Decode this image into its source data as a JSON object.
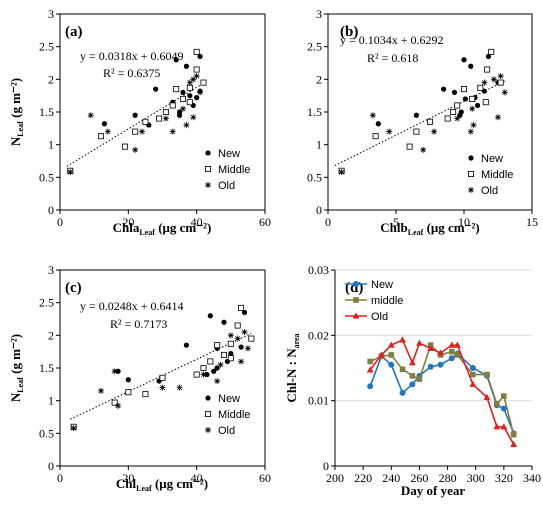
{
  "chart_data": [
    {
      "type": "scatter",
      "panel_label": "(a)",
      "xlabel": {
        "main": "Chla",
        "sub": "Leaf",
        "unit": " (μg cm⁻²)"
      },
      "ylabel": {
        "main": "N",
        "sub": "Leaf",
        "unit": " (g m⁻²)"
      },
      "xlim": [
        0,
        60
      ],
      "ylim": [
        0,
        3
      ],
      "xticks": [
        0,
        20,
        40,
        60
      ],
      "yticks": [
        0,
        0.5,
        1,
        1.5,
        2,
        2.5,
        3
      ],
      "xtick_labels": [
        "0",
        "20",
        "40",
        "60"
      ],
      "ytick_labels": [
        "0",
        "0.5",
        "1",
        "1.5",
        "2",
        "2.5",
        "3"
      ],
      "equation": "y = 0.0318x + 0.6049",
      "r2": "R² = 0.6375",
      "trend": {
        "slope": 0.0318,
        "intercept": 0.6049,
        "x_range": [
          2,
          42
        ]
      },
      "legend_position": "bottom-right",
      "series": [
        {
          "name": "New",
          "marker": "dot",
          "points": [
            [
              3,
              0.6
            ],
            [
              13,
              1.32
            ],
            [
              22,
              1.45
            ],
            [
              26,
              1.3
            ],
            [
              28,
              1.85
            ],
            [
              34,
              2.3
            ],
            [
              37,
              2.2
            ],
            [
              41,
              2.35
            ],
            [
              36,
              1.8
            ],
            [
              38,
              1.75
            ],
            [
              40,
              1.72
            ],
            [
              41,
              1.82
            ],
            [
              33,
              1.65
            ],
            [
              35,
              1.5
            ],
            [
              39,
              1.6
            ],
            [
              35,
              1.45
            ]
          ]
        },
        {
          "name": "Middle",
          "marker": "square",
          "points": [
            [
              3,
              0.6
            ],
            [
              12,
              1.13
            ],
            [
              19,
              0.97
            ],
            [
              22,
              1.2
            ],
            [
              25,
              1.35
            ],
            [
              29,
              1.4
            ],
            [
              33,
              1.6
            ],
            [
              34,
              1.85
            ],
            [
              36,
              1.7
            ],
            [
              38,
              1.65
            ],
            [
              40,
              2.15
            ],
            [
              40,
              2.42
            ],
            [
              42,
              1.95
            ],
            [
              38,
              1.87
            ],
            [
              31,
              1.5
            ]
          ]
        },
        {
          "name": "Old",
          "marker": "star",
          "points": [
            [
              3,
              0.58
            ],
            [
              9,
              1.45
            ],
            [
              14,
              1.2
            ],
            [
              22,
              0.92
            ],
            [
              24,
              1.2
            ],
            [
              31,
              1.4
            ],
            [
              33,
              1.2
            ],
            [
              36,
              1.55
            ],
            [
              38,
              1.95
            ],
            [
              39,
              2.0
            ],
            [
              40,
              2.05
            ],
            [
              41,
              1.8
            ],
            [
              39,
              1.42
            ],
            [
              37,
              1.3
            ]
          ]
        }
      ]
    },
    {
      "type": "scatter",
      "panel_label": "(b)",
      "xlabel": {
        "main": "Chlb",
        "sub": "Leaf",
        "unit": " (μg cm⁻²)"
      },
      "ylabel": {
        "main": "",
        "sub": "",
        "unit": ""
      },
      "xlim": [
        0,
        15
      ],
      "ylim": [
        0,
        3
      ],
      "xticks": [
        0,
        5,
        10,
        15
      ],
      "yticks": [
        0,
        0.5,
        1,
        1.5,
        2,
        2.5,
        3
      ],
      "xtick_labels": [
        "0",
        "5",
        "10",
        "15"
      ],
      "ytick_labels": [
        "0",
        "0.5",
        "1",
        "1.5",
        "2",
        "2.5",
        "3"
      ],
      "equation": "y = 0.1034x + 0.6292",
      "r2": "R² = 0.618",
      "trend": {
        "slope": 0.1034,
        "intercept": 0.6292,
        "x_range": [
          0.5,
          13
        ]
      },
      "legend_position": "bottom-right",
      "series": [
        {
          "name": "New",
          "marker": "dot",
          "points": [
            [
              1,
              0.6
            ],
            [
              3.7,
              1.32
            ],
            [
              6.5,
              1.45
            ],
            [
              8.5,
              1.85
            ],
            [
              10,
              2.3
            ],
            [
              10.5,
              2.2
            ],
            [
              11.8,
              2.35
            ],
            [
              9.3,
              1.8
            ],
            [
              10.1,
              1.7
            ],
            [
              10.8,
              1.72
            ],
            [
              11.5,
              1.82
            ],
            [
              9.8,
              1.5
            ],
            [
              11,
              1.6
            ],
            [
              9.7,
              1.45
            ],
            [
              12.5,
              1.95
            ]
          ]
        },
        {
          "name": "Middle",
          "marker": "square",
          "points": [
            [
              1,
              0.6
            ],
            [
              3.5,
              1.13
            ],
            [
              6,
              0.97
            ],
            [
              6.5,
              1.2
            ],
            [
              7.5,
              1.35
            ],
            [
              8.8,
              1.4
            ],
            [
              9.5,
              1.6
            ],
            [
              10,
              1.85
            ],
            [
              10.6,
              1.7
            ],
            [
              11.6,
              1.65
            ],
            [
              11.7,
              2.15
            ],
            [
              12,
              2.42
            ],
            [
              12.7,
              1.95
            ],
            [
              11.2,
              1.87
            ],
            [
              9.2,
              1.5
            ]
          ]
        },
        {
          "name": "Old",
          "marker": "star",
          "points": [
            [
              1,
              0.58
            ],
            [
              3.3,
              1.45
            ],
            [
              4.5,
              1.2
            ],
            [
              7,
              0.92
            ],
            [
              7.8,
              1.2
            ],
            [
              9.5,
              1.4
            ],
            [
              10.5,
              1.2
            ],
            [
              10.6,
              1.55
            ],
            [
              11.5,
              1.95
            ],
            [
              12.2,
              2.0
            ],
            [
              12.7,
              2.05
            ],
            [
              13,
              1.8
            ],
            [
              12.5,
              1.42
            ],
            [
              10.7,
              1.3
            ]
          ]
        }
      ]
    },
    {
      "type": "scatter",
      "panel_label": "(c)",
      "xlabel": {
        "main": "Chl",
        "sub": "Leaf",
        "unit": " (μg cm⁻²)"
      },
      "ylabel": {
        "main": "N",
        "sub": "Leaf",
        "unit": " (g m⁻²)"
      },
      "xlim": [
        0,
        60
      ],
      "ylim": [
        0,
        3
      ],
      "xticks": [
        0,
        20,
        40,
        60
      ],
      "yticks": [
        0,
        0.5,
        1,
        1.5,
        2,
        2.5,
        3
      ],
      "xtick_labels": [
        "0",
        "20",
        "40",
        "60"
      ],
      "ytick_labels": [
        "0",
        "0.5",
        "1",
        "1.5",
        "2",
        "2.5",
        "3"
      ],
      "equation": "y = 0.0248x + 0.6414",
      "r2": "R² = 0.7173",
      "trend": {
        "slope": 0.0248,
        "intercept": 0.6414,
        "x_range": [
          3,
          56
        ]
      },
      "legend_position": "bottom-right",
      "series": [
        {
          "name": "New",
          "marker": "dot",
          "points": [
            [
              4,
              0.6
            ],
            [
              17,
              1.45
            ],
            [
              20,
              1.32
            ],
            [
              29,
              1.3
            ],
            [
              37,
              1.85
            ],
            [
              43,
              1.4
            ],
            [
              44,
              2.3
            ],
            [
              48,
              2.2
            ],
            [
              54,
              2.35
            ],
            [
              46,
              1.8
            ],
            [
              48,
              1.7
            ],
            [
              50,
              1.72
            ],
            [
              53,
              1.82
            ],
            [
              46,
              1.5
            ],
            [
              49,
              1.6
            ],
            [
              45,
              1.45
            ]
          ]
        },
        {
          "name": "Middle",
          "marker": "square",
          "points": [
            [
              4,
              0.6
            ],
            [
              16,
              0.97
            ],
            [
              20,
              1.13
            ],
            [
              25,
              1.1
            ],
            [
              30,
              1.35
            ],
            [
              40,
              1.4
            ],
            [
              44,
              1.6
            ],
            [
              46,
              1.85
            ],
            [
              48,
              1.7
            ],
            [
              50,
              1.65
            ],
            [
              52,
              2.15
            ],
            [
              53,
              2.42
            ],
            [
              56,
              1.95
            ],
            [
              50,
              1.87
            ],
            [
              42,
              1.5
            ]
          ]
        },
        {
          "name": "Old",
          "marker": "star",
          "points": [
            [
              4,
              0.58
            ],
            [
              12,
              1.15
            ],
            [
              16,
              1.45
            ],
            [
              17,
              0.92
            ],
            [
              30,
              1.2
            ],
            [
              35,
              1.2
            ],
            [
              42,
              1.4
            ],
            [
              46,
              1.3
            ],
            [
              47,
              1.55
            ],
            [
              50,
              2.0
            ],
            [
              52,
              1.95
            ],
            [
              54,
              2.05
            ],
            [
              55,
              1.8
            ],
            [
              53,
              1.6
            ]
          ]
        }
      ]
    },
    {
      "type": "line",
      "panel_label": "(d)",
      "xlabel": {
        "main": "Day of year",
        "sub": "",
        "unit": ""
      },
      "ylabel": {
        "main": "Chl-N : N",
        "sub": "area",
        "unit": ""
      },
      "xlim": [
        200,
        340
      ],
      "ylim": [
        0,
        0.03
      ],
      "xticks": [
        200,
        220,
        240,
        260,
        280,
        300,
        320,
        340
      ],
      "yticks": [
        0,
        0.01,
        0.02,
        0.03
      ],
      "xtick_labels": [
        "200",
        "220",
        "240",
        "260",
        "280",
        "300",
        "320",
        "340"
      ],
      "ytick_labels": [
        "0",
        "0.01",
        "0.02",
        "0.03"
      ],
      "grid": true,
      "legend_position": "top-left",
      "series": [
        {
          "name": "New",
          "color": "#1f77c4",
          "marker": "circle",
          "x": [
            225,
            233,
            240,
            248,
            255,
            260,
            268,
            275,
            283,
            287,
            298,
            308,
            315,
            320,
            327
          ],
          "y": [
            0.0122,
            0.0168,
            0.0155,
            0.0112,
            0.0125,
            0.0138,
            0.0152,
            0.0155,
            0.0165,
            0.0172,
            0.015,
            0.0138,
            0.0093,
            0.0088,
            0.005
          ]
        },
        {
          "name": "middle",
          "color": "#7f7f3f",
          "marker": "square",
          "x": [
            225,
            233,
            240,
            248,
            255,
            260,
            268,
            275,
            283,
            287,
            298,
            308,
            315,
            320,
            327
          ],
          "y": [
            0.016,
            0.0168,
            0.017,
            0.0148,
            0.0138,
            0.0133,
            0.0185,
            0.017,
            0.0175,
            0.017,
            0.014,
            0.014,
            0.0095,
            0.0107,
            0.0048
          ]
        },
        {
          "name": "Old",
          "color": "#e02020",
          "marker": "triangle",
          "x": [
            225,
            233,
            240,
            248,
            255,
            260,
            268,
            275,
            283,
            287,
            298,
            308,
            315,
            320,
            327
          ],
          "y": [
            0.0147,
            0.017,
            0.0185,
            0.0193,
            0.0158,
            0.0188,
            0.018,
            0.0173,
            0.0185,
            0.0185,
            0.0125,
            0.0105,
            0.006,
            0.006,
            0.0033
          ]
        }
      ]
    }
  ]
}
